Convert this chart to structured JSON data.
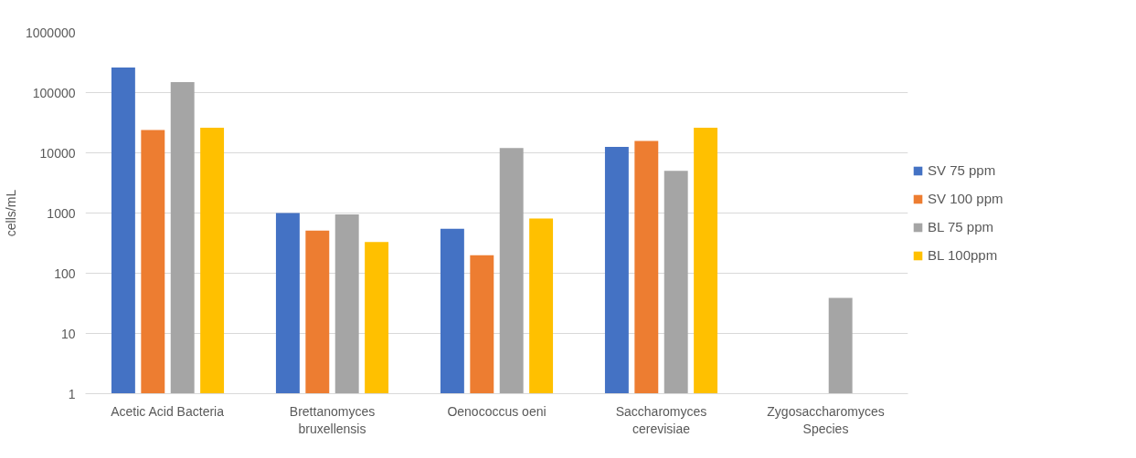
{
  "chart_data": {
    "type": "bar",
    "ylabel": "cells/mL",
    "log": "y",
    "grid": "y",
    "legend": "right",
    "categories": [
      "Acetic Acid Bacteria",
      "Brettanomyces\nbruxellensis",
      "Oenococcus oeni",
      "Saccharomyces\ncerevisiae",
      "Zygosaccharomyces\nSpecies"
    ],
    "ylim": [
      1,
      1000000
    ],
    "yticks": [
      1,
      10,
      100,
      1000,
      10000,
      100000,
      1000000
    ],
    "series": [
      {
        "name": "SV 75 ppm",
        "color": "#4472c4",
        "values": [
          260000,
          1000,
          550,
          12600,
          null
        ]
      },
      {
        "name": "SV 100 ppm",
        "color": "#ed7d31",
        "values": [
          24000,
          510,
          200,
          15800,
          null
        ]
      },
      {
        "name": "BL 75 ppm",
        "color": "#a5a5a5",
        "values": [
          150000,
          950,
          12000,
          5000,
          39
        ]
      },
      {
        "name": "BL 100ppm",
        "color": "#ffc000",
        "values": [
          26000,
          330,
          810,
          26000,
          null
        ]
      }
    ]
  }
}
